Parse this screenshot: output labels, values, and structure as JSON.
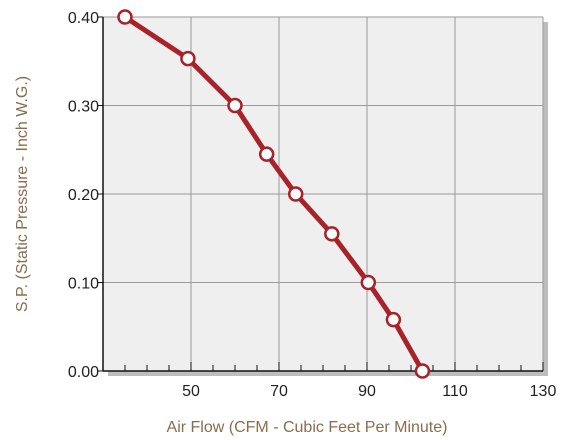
{
  "chart_data": {
    "type": "line",
    "xlabel": "Air Flow (CFM - Cubic Feet Per Minute)",
    "ylabel": "S.P. (Static Pressure - Inch W.G.)",
    "xlim": [
      30,
      130
    ],
    "ylim": [
      0,
      0.4
    ],
    "x_ticks": [
      "50",
      "70",
      "90",
      "110",
      "130"
    ],
    "y_ticks": [
      "0.00",
      "0.10",
      "0.20",
      "0.30",
      "0.40"
    ],
    "grid": true,
    "legend": "none",
    "series": [
      {
        "x": [
          35,
          49.3,
          60,
          67.2,
          73.8,
          82,
          90.3,
          96,
          102.6
        ],
        "y": [
          0.4,
          0.353,
          0.3,
          0.245,
          0.2,
          0.155,
          0.1,
          0.058,
          0.0
        ],
        "color": "#a8222a"
      }
    ]
  },
  "colors": {
    "plot_background": "#efefef",
    "grid": "#9a9a9a",
    "axis_label": "#8a6d4b",
    "line": "#a8222a",
    "marker_fill": "#ffffff"
  }
}
